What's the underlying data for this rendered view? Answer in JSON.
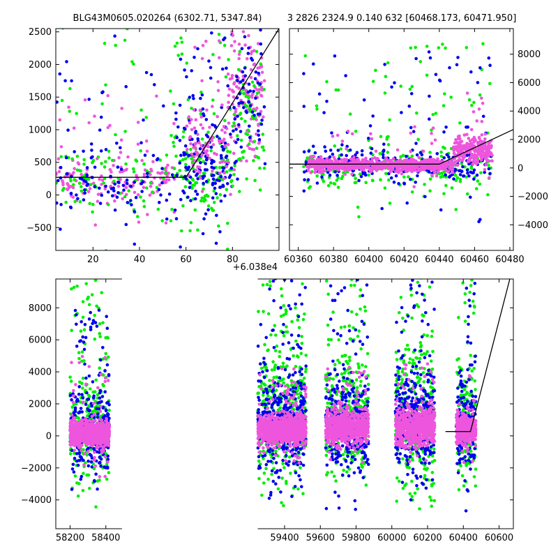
{
  "figure": {
    "title_left": "BLG43M0605.020264 (6302.71, 5347.84)",
    "title_right": "3 2826 2324.9 0.140 632 [60468.173, 60471.950]",
    "offset_label": "+6.038e4",
    "colors": {
      "green": "#00ee00",
      "blue": "#0000ee",
      "pink": "#ee55dd",
      "model": "#000000"
    }
  },
  "chart_data": [
    {
      "id": "zoom-left",
      "type": "scatter",
      "title": "BLG43M0605.020264 (6302.71, 5347.84)",
      "x_offset_label": "+6.038e4",
      "xlim": [
        4,
        100
      ],
      "ylim": [
        -850,
        2550
      ],
      "xticks": [
        20,
        40,
        60,
        80
      ],
      "yticks": [
        -500,
        0,
        500,
        1000,
        1500,
        2000,
        2500
      ],
      "ytick_side": "left",
      "grid": false,
      "model_line": {
        "x": [
          4,
          60,
          100
        ],
        "y": [
          270,
          270,
          2550
        ]
      },
      "clusters": [
        {
          "series": "pink",
          "x": [
            4,
            55
          ],
          "y_mean": 250,
          "y_sd": 180,
          "tail": 0.18,
          "tail_max": 1300,
          "n": 160
        },
        {
          "series": "green",
          "x": [
            4,
            55
          ],
          "y_mean": 200,
          "y_sd": 260,
          "tail": 0.3,
          "tail_max": 2400,
          "n": 110
        },
        {
          "series": "blue",
          "x": [
            4,
            55
          ],
          "y_mean": 230,
          "y_sd": 280,
          "tail": 0.3,
          "tail_max": 2400,
          "n": 110
        },
        {
          "series": "green",
          "x": [
            55,
            80
          ],
          "y_mean": 350,
          "y_sd": 400,
          "tail": 0.25,
          "tail_max": 2500,
          "n": 150
        },
        {
          "series": "blue",
          "x": [
            55,
            80
          ],
          "y_mean": 500,
          "y_sd": 350,
          "tail": 0.3,
          "tail_max": 2500,
          "n": 170
        },
        {
          "series": "pink",
          "x": [
            60,
            78
          ],
          "y_mean": 650,
          "y_sd": 300,
          "tail": 0.2,
          "tail_max": 1800,
          "n": 90
        },
        {
          "series": "pink",
          "x": [
            78,
            94
          ],
          "y_mean": 1500,
          "y_sd": 500,
          "tail": 0.2,
          "tail_max": 2500,
          "n": 150
        },
        {
          "series": "green",
          "x": [
            80,
            94
          ],
          "y_mean": 1000,
          "y_sd": 500,
          "tail": 0.2,
          "tail_max": 2500,
          "n": 70
        },
        {
          "series": "blue",
          "x": [
            80,
            94
          ],
          "y_mean": 1500,
          "y_sd": 500,
          "tail": 0.2,
          "tail_max": 2500,
          "n": 70
        }
      ]
    },
    {
      "id": "zoom-right",
      "type": "scatter",
      "title": "3 2826 2324.9 0.140 632 [60468.173, 60471.950]",
      "xlim": [
        60355,
        60482
      ],
      "ylim": [
        -5800,
        9800
      ],
      "xticks": [
        60360,
        60380,
        60400,
        60420,
        60440,
        60460,
        60480
      ],
      "yticks": [
        -4000,
        -2000,
        0,
        2000,
        4000,
        6000,
        8000
      ],
      "ytick_side": "right",
      "grid": false,
      "model_line": {
        "x": [
          60355,
          60440,
          60482
        ],
        "y": [
          270,
          270,
          2700
        ]
      },
      "clusters": [
        {
          "series": "green",
          "x": [
            60363,
            60470
          ],
          "y_mean": 0,
          "y_sd": 700,
          "tail": 0.25,
          "tail_max": 9000,
          "n": 260
        },
        {
          "series": "blue",
          "x": [
            60363,
            60470
          ],
          "y_mean": 200,
          "y_sd": 600,
          "tail": 0.25,
          "tail_max": 8000,
          "n": 300
        },
        {
          "series": "pink",
          "x": [
            60365,
            60448
          ],
          "y_mean": 200,
          "y_sd": 220,
          "tail": 0.04,
          "tail_max": 3000,
          "n": 800
        },
        {
          "series": "pink",
          "x": [
            60448,
            60470
          ],
          "y_mean": 1300,
          "y_sd": 500,
          "tail": 0.05,
          "tail_max": 4000,
          "n": 250
        }
      ]
    },
    {
      "id": "full-lightcurve",
      "type": "scatter",
      "xlim": [
        58120,
        60680
      ],
      "ylim": [
        -5800,
        9800
      ],
      "xticks": [
        58200,
        58400,
        59400,
        59600,
        59800,
        60000,
        60200,
        60400,
        60600
      ],
      "yticks": [
        -4000,
        -2000,
        0,
        2000,
        4000,
        6000,
        8000
      ],
      "ytick_side": "left",
      "grid": false,
      "axis_break": [
        58490,
        59250
      ],
      "model_line": {
        "x": [
          60300,
          60440,
          60660
        ],
        "y": [
          270,
          270,
          9800
        ]
      },
      "clusters": [
        {
          "series": "green",
          "x": [
            58200,
            58420
          ],
          "y_mean": 600,
          "y_sd": 1500,
          "tail": 0.25,
          "tail_max": 9200,
          "n": 300
        },
        {
          "series": "blue",
          "x": [
            58200,
            58420
          ],
          "y_mean": 300,
          "y_sd": 1100,
          "tail": 0.2,
          "tail_max": 8000,
          "n": 300
        },
        {
          "series": "pink",
          "x": [
            58200,
            58420
          ],
          "y_mean": 100,
          "y_sd": 400,
          "tail": 0.06,
          "tail_max": 5000,
          "n": 700
        },
        {
          "series": "green",
          "x": [
            59250,
            59520
          ],
          "y_mean": 1500,
          "y_sd": 2200,
          "tail": 0.2,
          "tail_max": 9800,
          "n": 420
        },
        {
          "series": "blue",
          "x": [
            59250,
            59520
          ],
          "y_mean": 800,
          "y_sd": 1500,
          "tail": 0.2,
          "tail_max": 9800,
          "n": 400
        },
        {
          "series": "pink",
          "x": [
            59250,
            59520
          ],
          "y_mean": 400,
          "y_sd": 450,
          "tail": 0.06,
          "tail_max": 4000,
          "n": 800
        },
        {
          "series": "green",
          "x": [
            59630,
            59870
          ],
          "y_mean": 1200,
          "y_sd": 1900,
          "tail": 0.2,
          "tail_max": 9000,
          "n": 320
        },
        {
          "series": "blue",
          "x": [
            59630,
            59870
          ],
          "y_mean": 700,
          "y_sd": 1400,
          "tail": 0.2,
          "tail_max": 9800,
          "n": 350
        },
        {
          "series": "pink",
          "x": [
            59630,
            59870
          ],
          "y_mean": 500,
          "y_sd": 550,
          "tail": 0.06,
          "tail_max": 4000,
          "n": 700
        },
        {
          "series": "green",
          "x": [
            60020,
            60240
          ],
          "y_mean": 1200,
          "y_sd": 2200,
          "tail": 0.2,
          "tail_max": 9700,
          "n": 320
        },
        {
          "series": "blue",
          "x": [
            60020,
            60240
          ],
          "y_mean": 1000,
          "y_sd": 1600,
          "tail": 0.2,
          "tail_max": 9500,
          "n": 360
        },
        {
          "series": "pink",
          "x": [
            60020,
            60240
          ],
          "y_mean": 500,
          "y_sd": 600,
          "tail": 0.06,
          "tail_max": 4000,
          "n": 700
        },
        {
          "series": "green",
          "x": [
            60360,
            60470
          ],
          "y_mean": 800,
          "y_sd": 2000,
          "tail": 0.2,
          "tail_max": 9500,
          "n": 150
        },
        {
          "series": "blue",
          "x": [
            60360,
            60470
          ],
          "y_mean": 600,
          "y_sd": 1500,
          "tail": 0.2,
          "tail_max": 9800,
          "n": 170
        },
        {
          "series": "pink",
          "x": [
            60360,
            60470
          ],
          "y_mean": 400,
          "y_sd": 500,
          "tail": 0.06,
          "tail_max": 4000,
          "n": 350
        }
      ]
    }
  ]
}
